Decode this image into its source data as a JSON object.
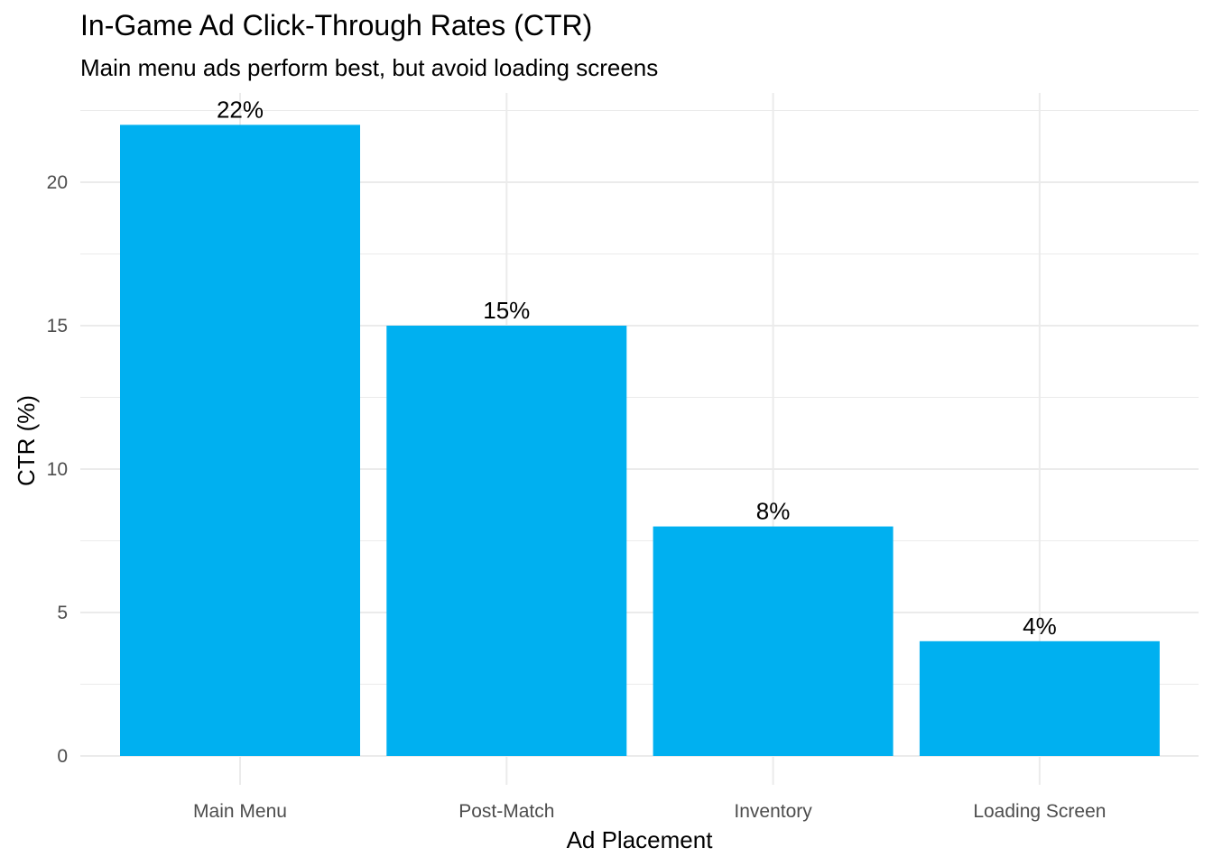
{
  "chart_data": {
    "type": "bar",
    "title": "In-Game Ad Click-Through Rates (CTR)",
    "subtitle": "Main menu ads perform best, but avoid loading screens",
    "xlabel": "Ad Placement",
    "ylabel": "CTR (%)",
    "categories": [
      "Main Menu",
      "Post-Match",
      "Inventory",
      "Loading Screen"
    ],
    "values": [
      22,
      15,
      8,
      4
    ],
    "data_labels": [
      "22%",
      "15%",
      "8%",
      "4%"
    ],
    "ylim": [
      0,
      23
    ],
    "yticks": [
      0,
      5,
      10,
      15,
      20
    ],
    "ytick_labels": [
      "0",
      "5",
      "10",
      "15",
      "20"
    ],
    "grid": true,
    "legend": "none",
    "bar_color": "#00B0F0",
    "grid_color": "#EBEBEB",
    "tick_label_color": "#4D4D4D"
  }
}
